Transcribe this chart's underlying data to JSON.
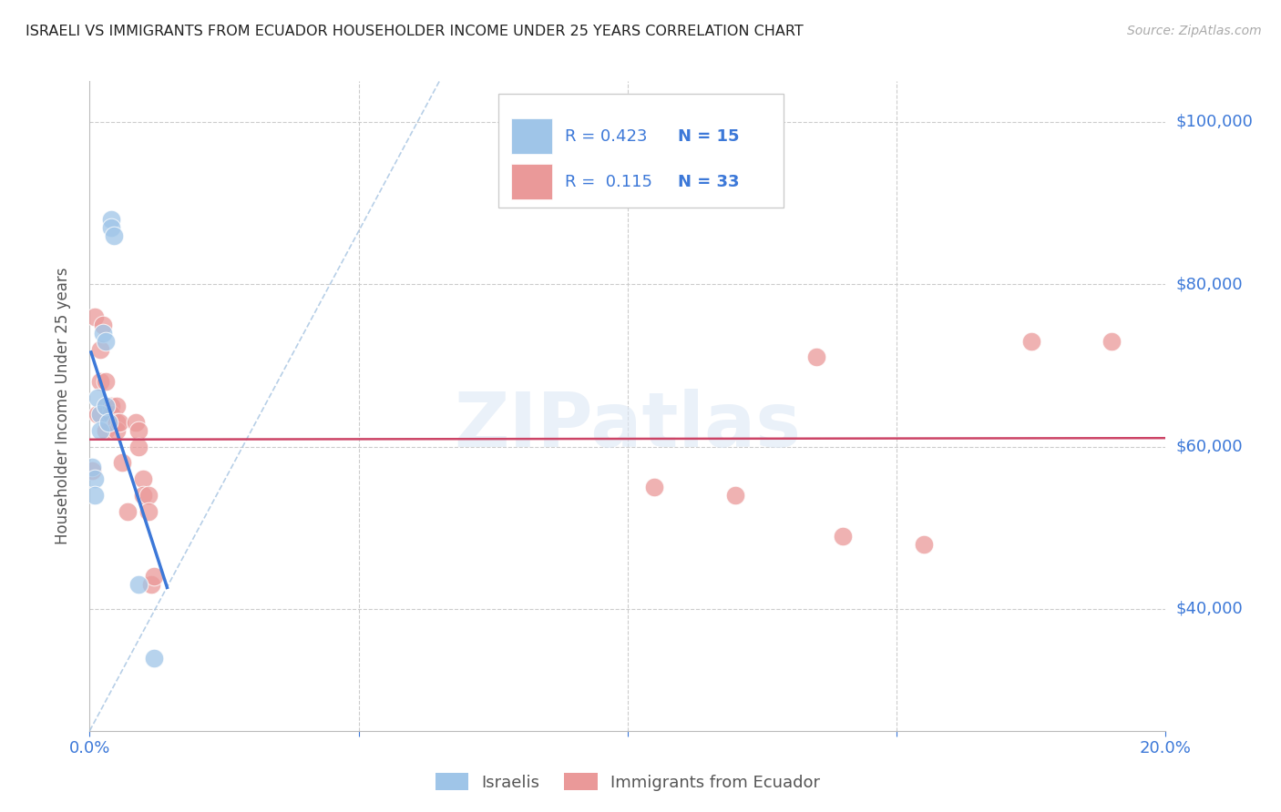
{
  "title": "ISRAELI VS IMMIGRANTS FROM ECUADOR HOUSEHOLDER INCOME UNDER 25 YEARS CORRELATION CHART",
  "source": "Source: ZipAtlas.com",
  "ylabel": "Householder Income Under 25 years",
  "legend_label1": "Israelis",
  "legend_label2": "Immigrants from Ecuador",
  "watermark": "ZIPatlas",
  "r1": 0.423,
  "n1": 15,
  "r2": 0.115,
  "n2": 33,
  "xlim": [
    0.0,
    0.2
  ],
  "ylim": [
    25000,
    105000
  ],
  "yticks": [
    40000,
    60000,
    80000,
    100000
  ],
  "ytick_labels": [
    "$40,000",
    "$60,000",
    "$80,000",
    "$100,000"
  ],
  "xticks": [
    0.0,
    0.05,
    0.1,
    0.15,
    0.2
  ],
  "xtick_labels": [
    "0.0%",
    "",
    "",
    "",
    "20.0%"
  ],
  "color_blue": "#9fc5e8",
  "color_pink": "#ea9999",
  "color_line_blue": "#3c78d8",
  "color_line_pink": "#cc4466",
  "color_dashed": "#a0c0e0",
  "color_axis_labels": "#3c78d8",
  "israelis_x": [
    0.0005,
    0.001,
    0.001,
    0.0015,
    0.002,
    0.002,
    0.0025,
    0.003,
    0.003,
    0.0035,
    0.004,
    0.004,
    0.0045,
    0.009,
    0.012
  ],
  "israelis_y": [
    57500,
    56000,
    54000,
    66000,
    64000,
    62000,
    74000,
    73000,
    65000,
    63000,
    88000,
    87000,
    86000,
    43000,
    34000
  ],
  "ecuador_x": [
    0.0005,
    0.001,
    0.0015,
    0.002,
    0.002,
    0.0025,
    0.003,
    0.003,
    0.003,
    0.004,
    0.004,
    0.005,
    0.005,
    0.005,
    0.0055,
    0.006,
    0.007,
    0.0085,
    0.009,
    0.009,
    0.01,
    0.01,
    0.011,
    0.011,
    0.0115,
    0.012,
    0.105,
    0.12,
    0.135,
    0.14,
    0.155,
    0.175,
    0.19
  ],
  "ecuador_y": [
    57000,
    76000,
    64000,
    72000,
    68000,
    75000,
    68000,
    65000,
    62000,
    65000,
    64000,
    65000,
    63000,
    62000,
    63000,
    58000,
    52000,
    63000,
    62000,
    60000,
    56000,
    54000,
    54000,
    52000,
    43000,
    44000,
    55000,
    54000,
    71000,
    49000,
    48000,
    73000,
    73000
  ],
  "dashed_line_x": [
    0.0,
    0.065
  ],
  "dashed_line_y": [
    25000,
    105000
  ]
}
